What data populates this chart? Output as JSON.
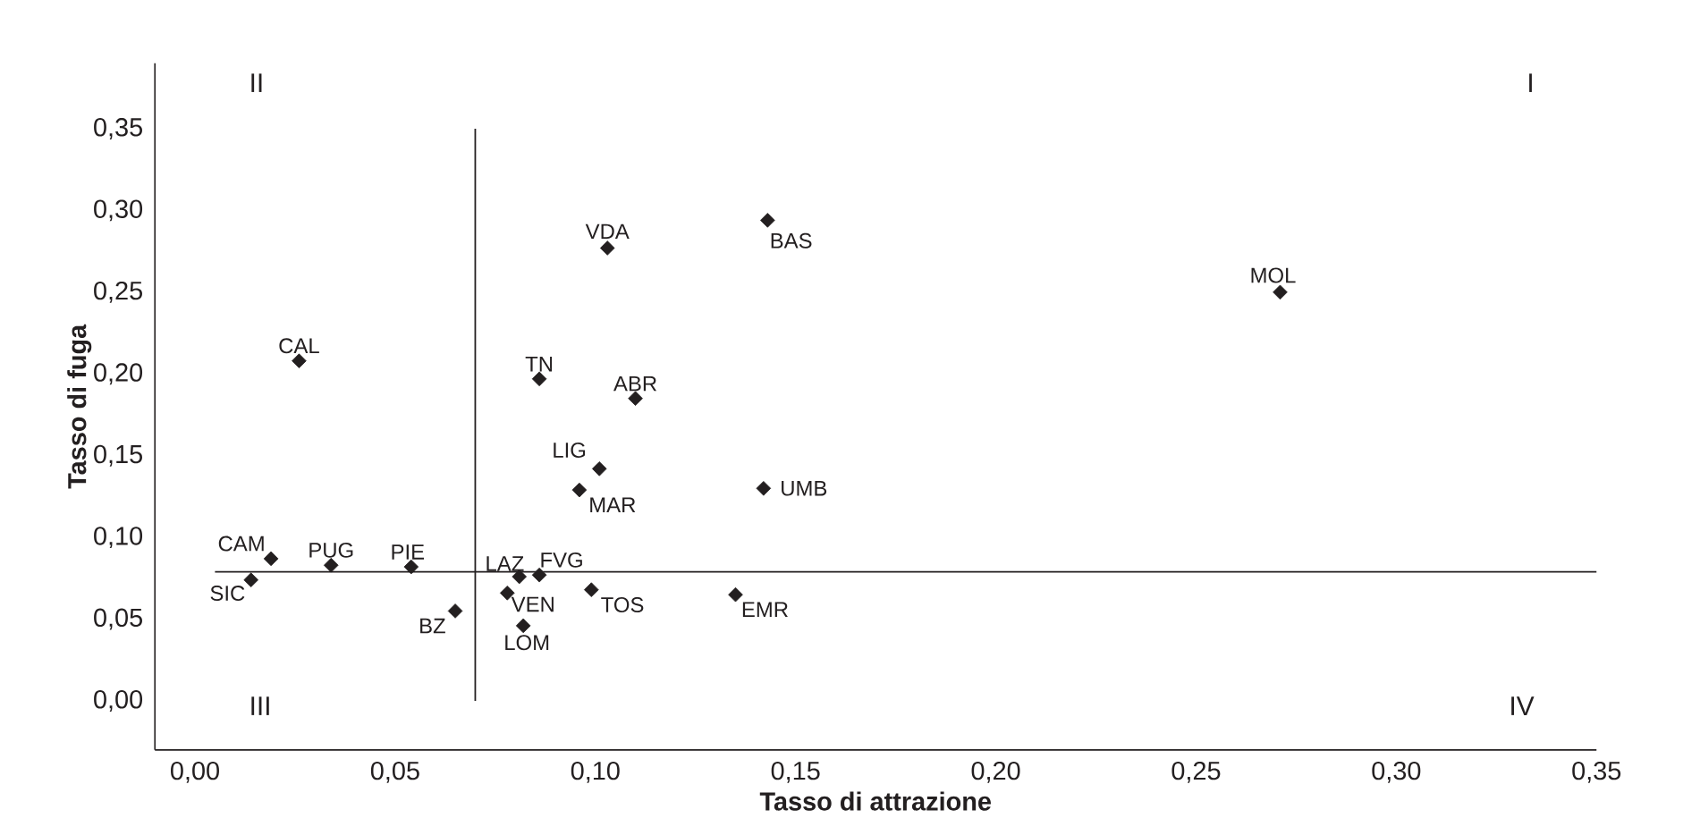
{
  "chart_data": {
    "type": "scatter",
    "xlabel": "Tasso di attrazione",
    "ylabel": "Tasso di fuga",
    "xlim": [
      -0.01,
      0.35
    ],
    "ylim": [
      -0.03,
      0.39
    ],
    "xticks": [
      {
        "value": 0,
        "label": "0,00"
      },
      {
        "value": 0.05,
        "label": "0,05"
      },
      {
        "value": 0.1,
        "label": "0,10"
      },
      {
        "value": 0.15,
        "label": "0,15"
      },
      {
        "value": 0.2,
        "label": "0,20"
      },
      {
        "value": 0.25,
        "label": "0,25"
      },
      {
        "value": 0.3,
        "label": "0,30"
      },
      {
        "value": 0.35,
        "label": "0,35"
      }
    ],
    "yticks": [
      {
        "value": 0,
        "label": "0,00"
      },
      {
        "value": 0.05,
        "label": "0,05"
      },
      {
        "value": 0.1,
        "label": "0,10"
      },
      {
        "value": 0.15,
        "label": "0,15"
      },
      {
        "value": 0.2,
        "label": "0,20"
      },
      {
        "value": 0.25,
        "label": "0,25"
      },
      {
        "value": 0.3,
        "label": "0,30"
      },
      {
        "value": 0.35,
        "label": "0,35"
      }
    ],
    "marker": "diamond",
    "series": [
      {
        "color": "#231f20",
        "x": [
          0.026,
          0.086,
          0.11,
          0.101,
          0.096,
          0.142,
          0.103,
          0.143,
          0.271,
          0.019,
          0.034,
          0.054,
          0.014,
          0.065,
          0.081,
          0.086,
          0.078,
          0.082,
          0.099,
          0.135
        ],
        "values": [
          0.208,
          0.197,
          0.185,
          0.142,
          0.129,
          0.13,
          0.277,
          0.294,
          0.25,
          0.087,
          0.083,
          0.082,
          0.074,
          0.055,
          0.076,
          0.077,
          0.066,
          0.046,
          0.068,
          0.065
        ]
      }
    ],
    "ref_lines": [
      {
        "axis": "x",
        "value": 0.07,
        "color": "#231f20"
      },
      {
        "axis": "y",
        "value": 0.079,
        "color": "#231f20"
      }
    ],
    "annotations": [
      {
        "text": "CAL",
        "x": 0.026,
        "y": 0.208
      },
      {
        "text": "TN",
        "x": 0.086,
        "y": 0.197
      },
      {
        "text": "ABR",
        "x": 0.11,
        "y": 0.185
      },
      {
        "text": "LIG",
        "x": 0.101,
        "y": 0.142
      },
      {
        "text": "MAR",
        "x": 0.096,
        "y": 0.129
      },
      {
        "text": "UMB",
        "x": 0.142,
        "y": 0.13
      },
      {
        "text": "VDA",
        "x": 0.103,
        "y": 0.277
      },
      {
        "text": "BAS",
        "x": 0.143,
        "y": 0.294
      },
      {
        "text": "MOL",
        "x": 0.271,
        "y": 0.25
      },
      {
        "text": "CAM",
        "x": 0.019,
        "y": 0.087
      },
      {
        "text": "PUG",
        "x": 0.034,
        "y": 0.083
      },
      {
        "text": "PIE",
        "x": 0.054,
        "y": 0.082
      },
      {
        "text": "SIC",
        "x": 0.014,
        "y": 0.074
      },
      {
        "text": "BZ",
        "x": 0.065,
        "y": 0.055
      },
      {
        "text": "LAZ",
        "x": 0.081,
        "y": 0.076
      },
      {
        "text": "FVG",
        "x": 0.086,
        "y": 0.077
      },
      {
        "text": "VEN",
        "x": 0.078,
        "y": 0.066
      },
      {
        "text": "LOM",
        "x": 0.082,
        "y": 0.046
      },
      {
        "text": "TOS",
        "x": 0.099,
        "y": 0.068
      },
      {
        "text": "EMR",
        "x": 0.135,
        "y": 0.065
      },
      "II",
      "I",
      "III",
      "IV"
    ]
  }
}
